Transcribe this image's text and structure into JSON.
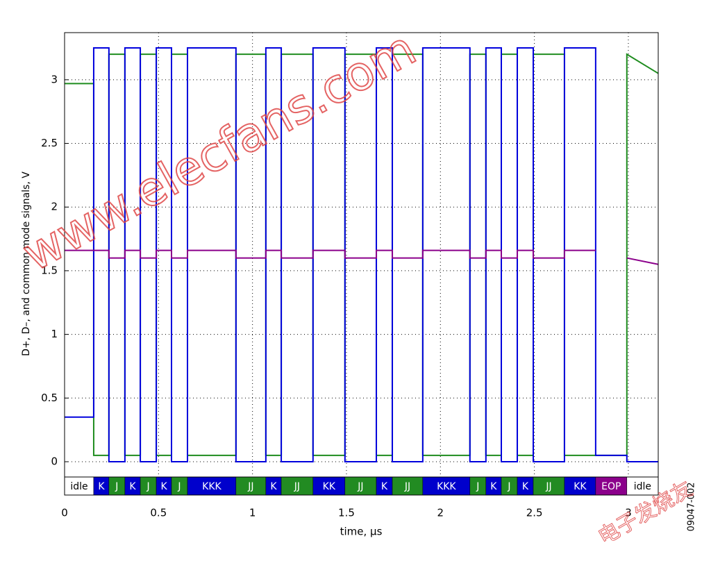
{
  "chart_data": {
    "type": "line",
    "x_label": "time, µs",
    "y_label": "D+, D–, and common mode signals, V",
    "x": [
      0,
      0.155,
      0.155,
      0.236,
      0.236,
      0.321,
      0.321,
      0.403,
      0.403,
      0.488,
      0.488,
      0.569,
      0.569,
      0.654,
      0.654,
      0.912,
      0.912,
      1.071,
      1.071,
      1.153,
      1.153,
      1.322,
      1.322,
      1.492,
      1.492,
      1.659,
      1.659,
      1.744,
      1.744,
      1.906,
      1.906,
      2.157,
      2.157,
      2.242,
      2.242,
      2.324,
      2.324,
      2.409,
      2.409,
      2.494,
      2.494,
      2.66,
      2.66,
      2.826,
      2.826,
      2.992,
      2.992,
      3.159
    ],
    "series": [
      {
        "color": "#1e8c1e",
        "values": [
          2.97,
          2.97,
          0.05,
          0.05,
          3.2,
          3.2,
          0.05,
          0.05,
          3.2,
          3.2,
          0.05,
          0.05,
          3.2,
          3.2,
          0.05,
          0.05,
          3.2,
          3.2,
          0.05,
          0.05,
          3.2,
          3.2,
          0.05,
          0.05,
          3.2,
          3.2,
          0.05,
          0.05,
          3.2,
          3.2,
          0.05,
          0.05,
          3.2,
          3.2,
          0.05,
          0.05,
          3.2,
          3.2,
          0.05,
          0.05,
          3.2,
          3.2,
          0.05,
          0.05,
          0.05,
          0.05,
          3.2,
          3.05
        ]
      },
      {
        "color": "#0000dd",
        "values": [
          0.35,
          0.35,
          3.25,
          3.25,
          0,
          0,
          3.25,
          3.25,
          0,
          0,
          3.25,
          3.25,
          0,
          0,
          3.25,
          3.25,
          0,
          0,
          3.25,
          3.25,
          0,
          0,
          3.25,
          3.25,
          0,
          0,
          3.25,
          3.25,
          0,
          0,
          3.25,
          3.25,
          0,
          0,
          3.25,
          3.25,
          0,
          0,
          3.25,
          3.25,
          0,
          0,
          3.25,
          3.25,
          0.05,
          0.05,
          0,
          0
        ]
      },
      {
        "color": "#8b008b",
        "values": [
          1.66,
          1.66,
          1.66,
          1.66,
          1.6,
          1.6,
          1.66,
          1.66,
          1.6,
          1.6,
          1.66,
          1.66,
          1.6,
          1.6,
          1.66,
          1.66,
          1.6,
          1.6,
          1.66,
          1.66,
          1.6,
          1.6,
          1.66,
          1.66,
          1.6,
          1.6,
          1.66,
          1.66,
          1.6,
          1.6,
          1.66,
          1.66,
          1.6,
          1.6,
          1.66,
          1.66,
          1.6,
          1.6,
          1.66,
          1.66,
          1.6,
          1.6,
          1.66,
          1.66,
          null,
          null,
          1.6,
          1.55
        ]
      }
    ],
    "xlim": [
      0,
      3.159
    ],
    "ylim": [
      -0.12,
      3.37
    ],
    "xticks": [
      0,
      0.5,
      1,
      1.5,
      2,
      2.5,
      3
    ],
    "yticks": [
      0,
      0.5,
      1,
      1.5,
      2,
      2.5,
      3
    ],
    "grid": true,
    "bit_states": {
      "labels": [
        "idle",
        "K",
        "J",
        "K",
        "J",
        "K",
        "J",
        "KKK",
        "JJ",
        "K",
        "JJ",
        "KK",
        "JJ",
        "K",
        "JJ",
        "KKK",
        "J",
        "K",
        "J",
        "K",
        "JJ",
        "KK",
        "EOP",
        "idle"
      ],
      "edges": [
        0,
        0.155,
        0.236,
        0.321,
        0.403,
        0.488,
        0.569,
        0.654,
        0.912,
        1.071,
        1.153,
        1.322,
        1.492,
        1.659,
        1.744,
        1.906,
        2.157,
        2.242,
        2.324,
        2.409,
        2.494,
        2.66,
        2.826,
        2.992,
        3.159
      ],
      "colors": [
        "#ffffff",
        "#0000cc",
        "#228b22",
        "#0000cc",
        "#228b22",
        "#0000cc",
        "#228b22",
        "#0000cc",
        "#228b22",
        "#0000cc",
        "#228b22",
        "#0000cc",
        "#228b22",
        "#0000cc",
        "#228b22",
        "#0000cc",
        "#228b22",
        "#0000cc",
        "#228b22",
        "#0000cc",
        "#228b22",
        "#0000cc",
        "#8b008b",
        "#ffffff"
      ]
    },
    "figure_id": "09047-002",
    "watermark": "www.elecfans.com",
    "watermark_cn": "电子发烧友"
  }
}
